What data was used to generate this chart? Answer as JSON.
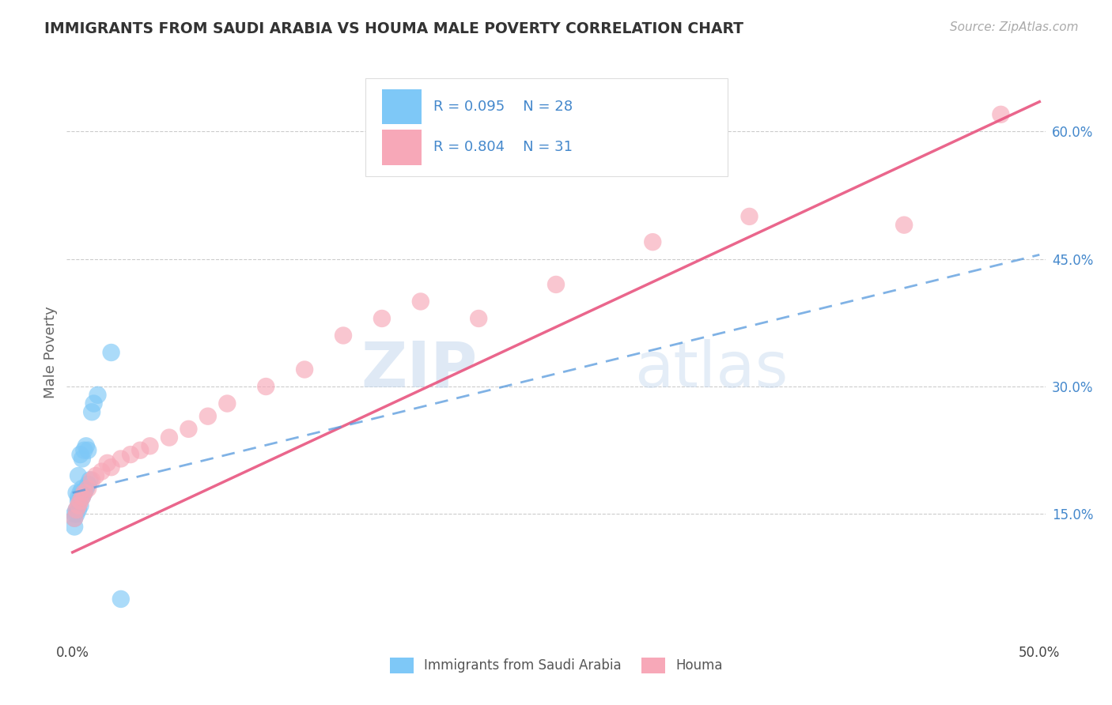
{
  "title": "IMMIGRANTS FROM SAUDI ARABIA VS HOUMA MALE POVERTY CORRELATION CHART",
  "source": "Source: ZipAtlas.com",
  "ylabel": "Male Poverty",
  "watermark_zip": "ZIP",
  "watermark_atlas": "atlas",
  "xlim": [
    0.0,
    0.5
  ],
  "ylim": [
    0.0,
    0.65
  ],
  "yticks": [
    0.15,
    0.3,
    0.45,
    0.6
  ],
  "ytick_labels": [
    "15.0%",
    "30.0%",
    "45.0%",
    "60.0%"
  ],
  "legend_r1": "R = 0.095",
  "legend_n1": "N = 28",
  "legend_r2": "R = 0.804",
  "legend_n2": "N = 31",
  "color_blue": "#7ec8f7",
  "color_pink": "#f7a8b8",
  "line_blue": "#5599dd",
  "line_pink": "#e85580",
  "text_blue": "#4488cc",
  "background": "#ffffff",
  "grid_color": "#cccccc",
  "saudi_x": [
    0.001,
    0.001,
    0.001,
    0.002,
    0.002,
    0.002,
    0.003,
    0.003,
    0.003,
    0.003,
    0.004,
    0.004,
    0.004,
    0.005,
    0.005,
    0.005,
    0.006,
    0.006,
    0.007,
    0.007,
    0.008,
    0.008,
    0.009,
    0.01,
    0.011,
    0.013,
    0.02,
    0.025
  ],
  "saudi_y": [
    0.135,
    0.145,
    0.15,
    0.15,
    0.155,
    0.175,
    0.155,
    0.165,
    0.17,
    0.195,
    0.16,
    0.175,
    0.22,
    0.17,
    0.18,
    0.215,
    0.175,
    0.225,
    0.18,
    0.23,
    0.185,
    0.225,
    0.19,
    0.27,
    0.28,
    0.29,
    0.34,
    0.05
  ],
  "houma_x": [
    0.001,
    0.002,
    0.003,
    0.004,
    0.005,
    0.006,
    0.008,
    0.01,
    0.012,
    0.015,
    0.018,
    0.02,
    0.025,
    0.03,
    0.035,
    0.04,
    0.05,
    0.06,
    0.07,
    0.08,
    0.1,
    0.12,
    0.14,
    0.16,
    0.18,
    0.21,
    0.25,
    0.3,
    0.35,
    0.43,
    0.48
  ],
  "houma_y": [
    0.145,
    0.155,
    0.16,
    0.165,
    0.17,
    0.175,
    0.18,
    0.19,
    0.195,
    0.2,
    0.21,
    0.205,
    0.215,
    0.22,
    0.225,
    0.23,
    0.24,
    0.25,
    0.265,
    0.28,
    0.3,
    0.32,
    0.36,
    0.38,
    0.4,
    0.38,
    0.42,
    0.47,
    0.5,
    0.49,
    0.62
  ],
  "houma_line_x0": 0.0,
  "houma_line_y0": 0.105,
  "houma_line_x1": 0.5,
  "houma_line_y1": 0.635,
  "saudi_line_x0": 0.0,
  "saudi_line_y0": 0.175,
  "saudi_line_x1": 0.5,
  "saudi_line_y1": 0.455
}
